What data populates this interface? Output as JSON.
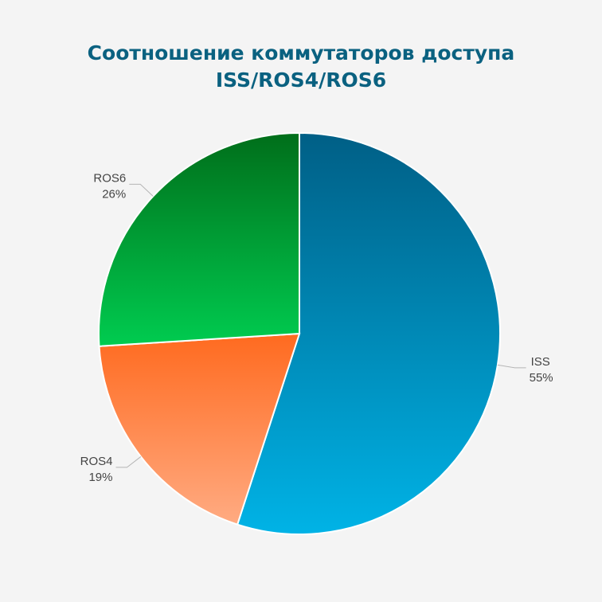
{
  "chart_data": {
    "type": "pie",
    "title_lines": [
      "Соотношение коммутаторов доступа",
      "ISS/ROS4/ROS6"
    ],
    "slices": [
      {
        "name": "ISS",
        "value": 55,
        "label": "55%",
        "color_top": "#005f86",
        "color_bottom": "#00b3e6"
      },
      {
        "name": "ROS4",
        "value": 19,
        "label": "19%",
        "color_top": "#ff6a1f",
        "color_bottom": "#ffab82"
      },
      {
        "name": "ROS6",
        "value": 26,
        "label": "26%",
        "color_top": "#006e1a",
        "color_bottom": "#00cc50"
      }
    ],
    "legend": "none",
    "grid": false
  }
}
